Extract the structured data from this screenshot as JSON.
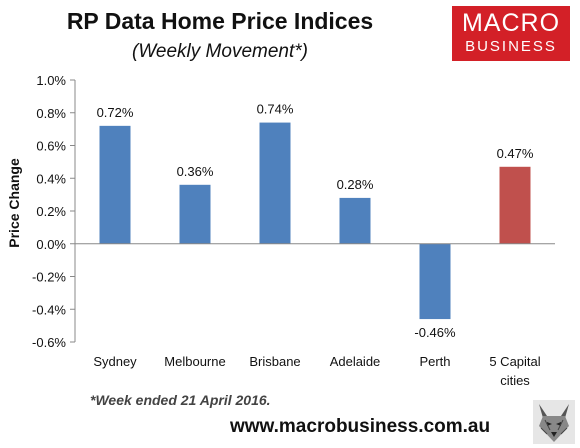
{
  "header": {
    "title": "RP Data Home Price Indices",
    "subtitle": "(Weekly Movement*)"
  },
  "logo": {
    "line1": "MACRO",
    "line2": "BUSINESS",
    "color": "#d32027"
  },
  "footer": {
    "footnote": "*Week ended 21 April 2016.",
    "website": "www.macrobusiness.com.au",
    "mascot_icon": "wolf-icon"
  },
  "chart_data": {
    "type": "bar",
    "categories": [
      "Sydney",
      "Melbourne",
      "Brisbane",
      "Adelaide",
      "Perth",
      "5 Capital cities"
    ],
    "values": [
      0.72,
      0.36,
      0.74,
      0.28,
      -0.46,
      0.47
    ],
    "value_labels": [
      "0.72%",
      "0.36%",
      "0.74%",
      "0.28%",
      "-0.46%",
      "0.47%"
    ],
    "title": "RP Data Home Price Indices",
    "xlabel": "",
    "ylabel": "Price Change",
    "ylim": [
      -0.6,
      1.0
    ],
    "yticks": [
      1.0,
      0.8,
      0.6,
      0.4,
      0.2,
      0.0,
      -0.2,
      -0.4,
      -0.6
    ],
    "ytick_labels": [
      "1.0%",
      "0.8%",
      "0.6%",
      "0.4%",
      "0.2%",
      "0.0%",
      "-0.2%",
      "-0.4%",
      "-0.6%"
    ],
    "colors": [
      "#4f81bd",
      "#4f81bd",
      "#4f81bd",
      "#4f81bd",
      "#4f81bd",
      "#c0504d"
    ],
    "grid": false,
    "legend": "none"
  }
}
